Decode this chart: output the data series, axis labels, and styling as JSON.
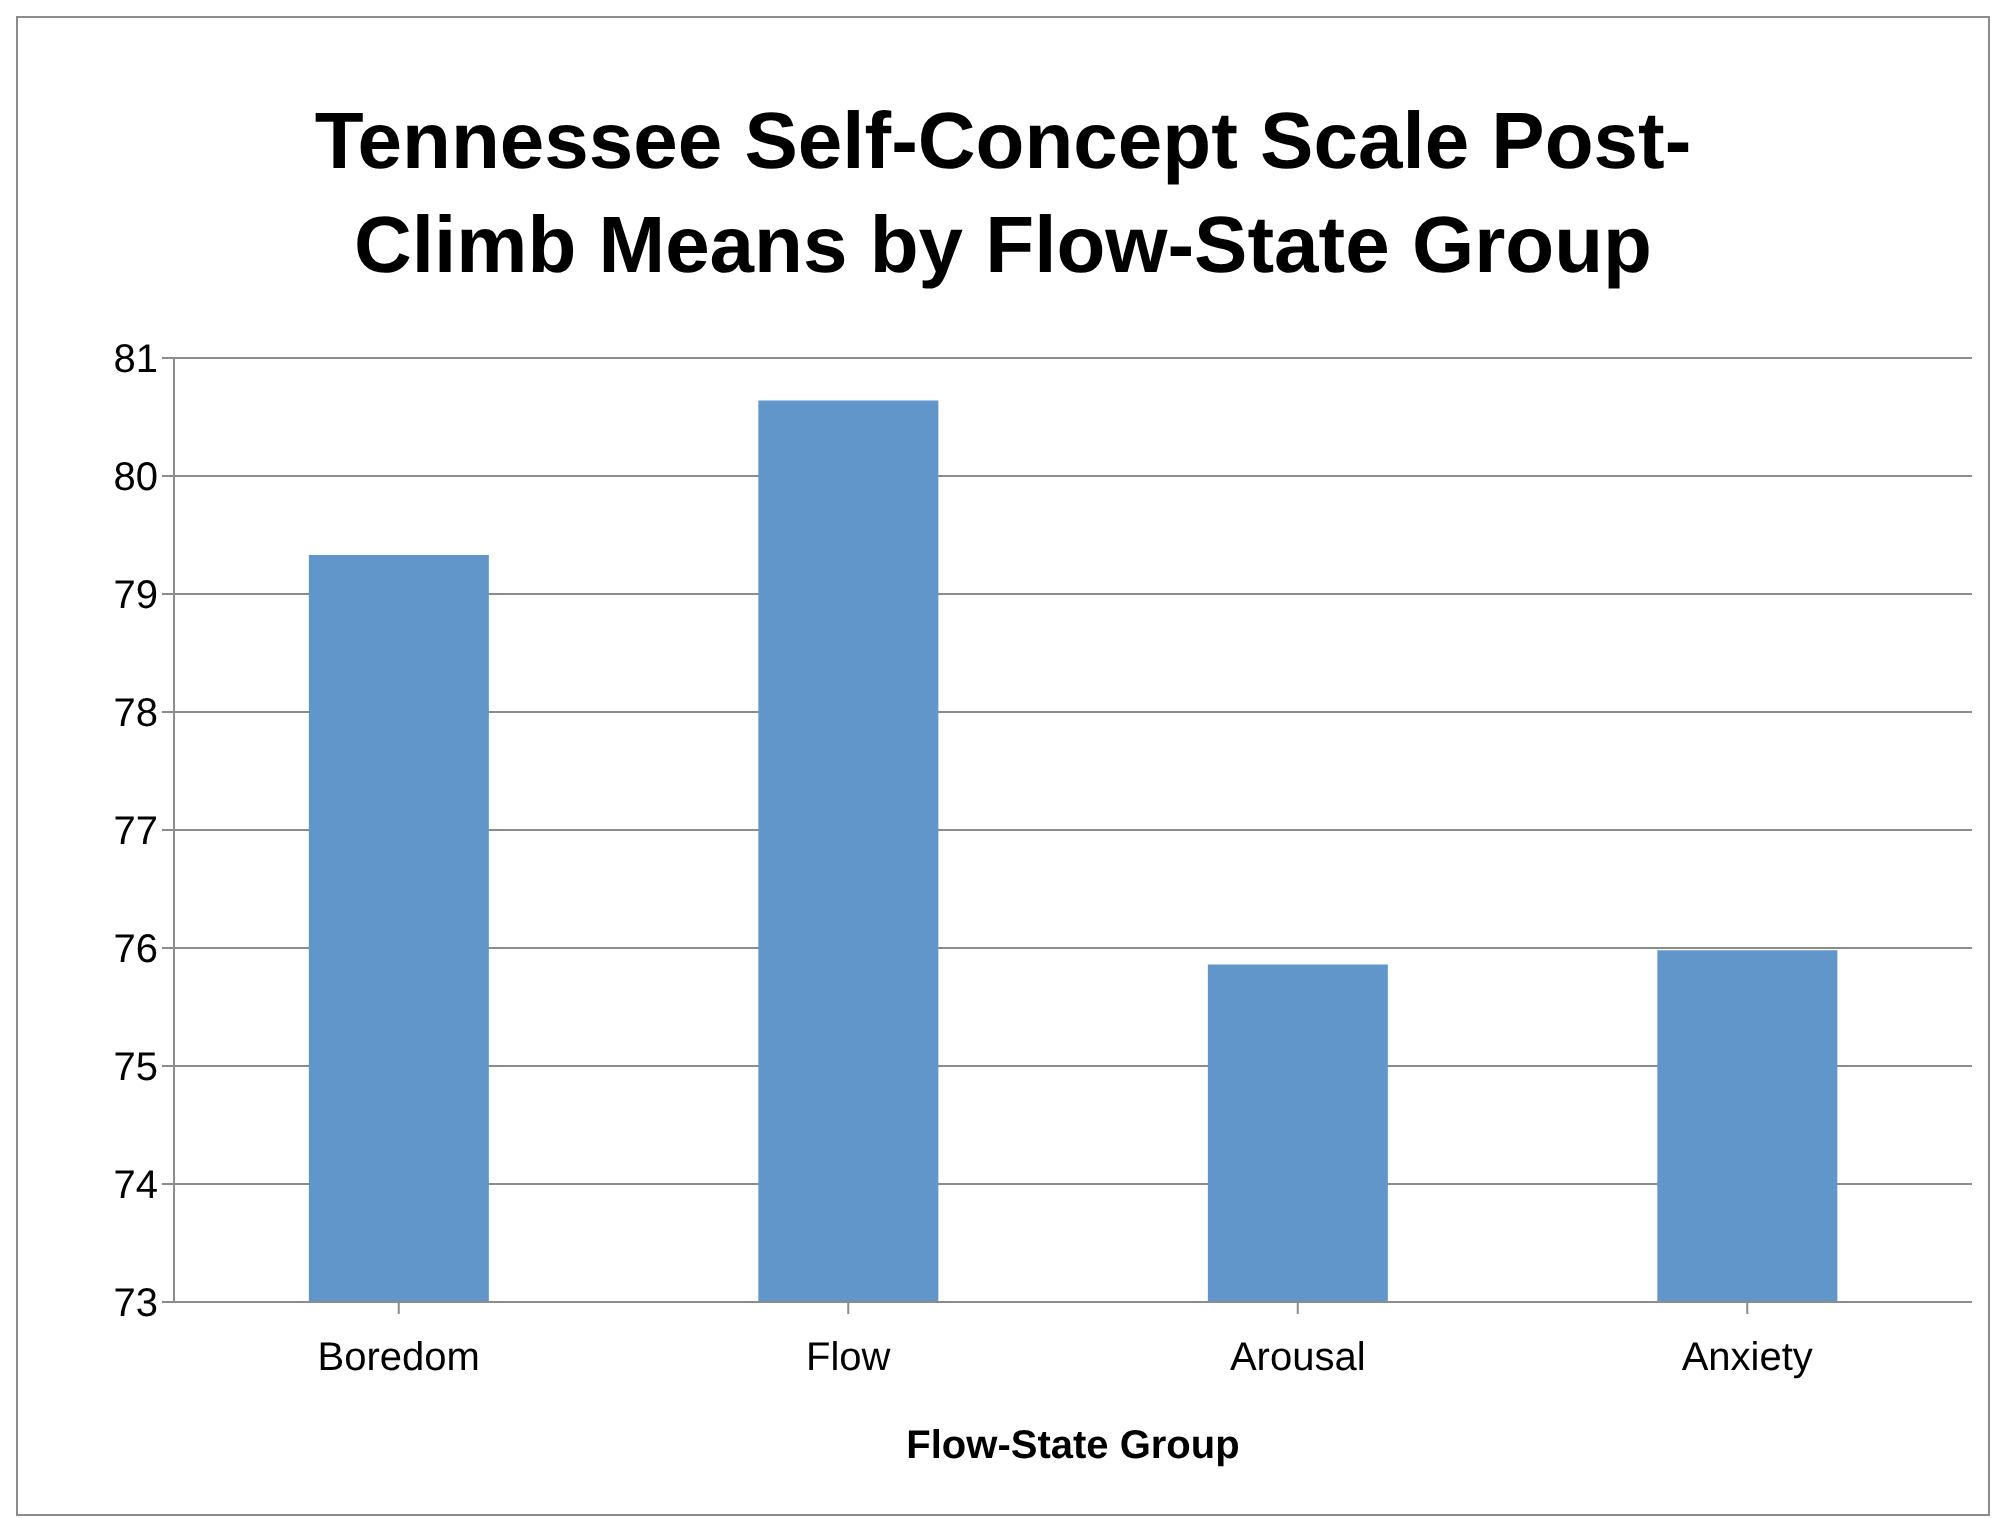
{
  "chart_data": {
    "type": "bar",
    "title": "Tennessee Self-Concept Scale Post-Climb Means by Flow-State Group",
    "xlabel": "Flow-State Group",
    "categories": [
      "Boredom",
      "Flow",
      "Arousal",
      "Anxiety"
    ],
    "values": [
      79.33,
      80.64,
      75.86,
      75.98
    ],
    "color": "#6096ca",
    "ylim": [
      73,
      81
    ],
    "yticks": [
      73,
      74,
      75,
      76,
      77,
      78,
      79,
      80,
      81
    ],
    "grid": "y"
  }
}
